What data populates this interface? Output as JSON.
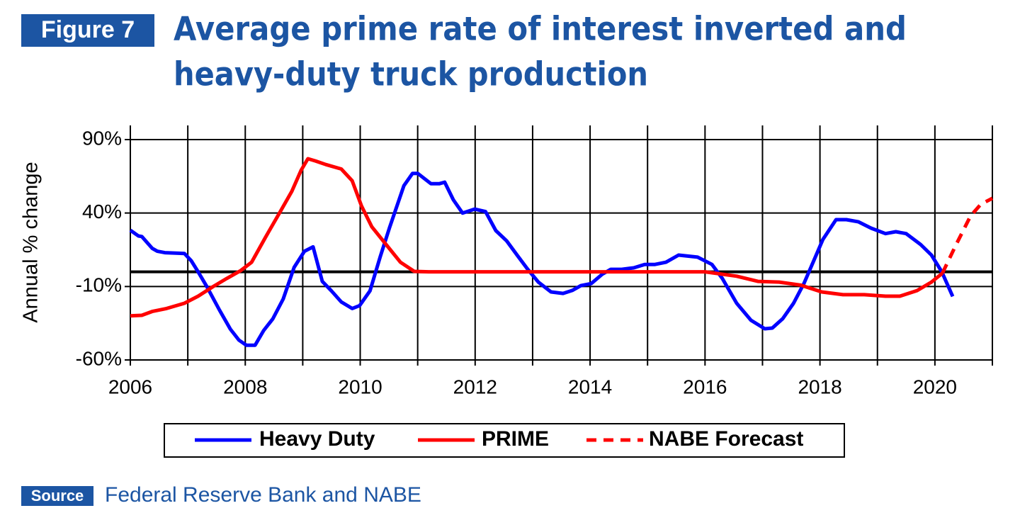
{
  "figure_label": "Figure 7",
  "source_label": "Source",
  "source": "Federal Reserve Bank and NABE",
  "chart_data": {
    "type": "line",
    "title": [
      "Average prime rate of interest inverted and",
      "heavy-duty truck production"
    ],
    "y_label": "Annual % change",
    "xlim": [
      2006,
      2021
    ],
    "xticks": [
      2006,
      2008,
      2010,
      2012,
      2014,
      2016,
      2018,
      2020
    ],
    "xgrid": [
      2007,
      2009,
      2011,
      2013,
      2015,
      2017,
      2019,
      2021
    ],
    "ylim": [
      -60,
      90
    ],
    "yticks": [
      {
        "value": -60,
        "label": "-60%"
      },
      {
        "value": -10,
        "label": "-10%"
      },
      {
        "value": 40,
        "label": "40%"
      },
      {
        "value": 90,
        "label": "90%"
      }
    ],
    "grid": true,
    "hline": 0,
    "legend": "bottom",
    "series": [
      {
        "name": "Heavy Duty",
        "color": "#0000ff",
        "style": "solid",
        "x": [
          2006.0,
          2006.14,
          2006.2,
          2006.38,
          2006.47,
          2006.6,
          2006.94,
          2007.06,
          2007.18,
          2007.33,
          2007.55,
          2007.74,
          2007.89,
          2008.02,
          2008.17,
          2008.32,
          2008.48,
          2008.66,
          2008.85,
          2009.03,
          2009.18,
          2009.34,
          2009.5,
          2009.67,
          2009.86,
          2009.99,
          2010.17,
          2010.35,
          2010.51,
          2010.76,
          2010.91,
          2011.0,
          2011.23,
          2011.38,
          2011.47,
          2011.62,
          2011.78,
          2011.99,
          2012.18,
          2012.36,
          2012.55,
          2012.73,
          2012.91,
          2013.1,
          2013.32,
          2013.53,
          2013.69,
          2013.84,
          2014.02,
          2014.21,
          2014.36,
          2014.55,
          2014.76,
          2014.95,
          2015.13,
          2015.32,
          2015.54,
          2015.87,
          2016.12,
          2016.3,
          2016.55,
          2016.8,
          2017.04,
          2017.17,
          2017.35,
          2017.54,
          2017.72,
          2017.88,
          2018.05,
          2018.28,
          2018.46,
          2018.67,
          2018.89,
          2019.14,
          2019.32,
          2019.5,
          2019.75,
          2019.94,
          2020.12,
          2020.31
        ],
        "values": [
          28.3,
          24.4,
          24,
          16,
          14,
          13,
          12.5,
          7.5,
          0,
          -10,
          -26,
          -39,
          -46.5,
          -50,
          -50,
          -40,
          -32,
          -18.5,
          3,
          14,
          17,
          -6.5,
          -13,
          -20.5,
          -25,
          -23,
          -13,
          10.4,
          30,
          58.6,
          67,
          67,
          60,
          60,
          61,
          49,
          40,
          42.7,
          41,
          28,
          21,
          11.4,
          2,
          -7,
          -13.7,
          -14.7,
          -12.7,
          -9.4,
          -8,
          -1.7,
          1.7,
          1.7,
          2.7,
          5,
          5,
          6.5,
          11.4,
          10,
          5,
          -4.5,
          -21.4,
          -33,
          -38.8,
          -38.3,
          -32,
          -21.4,
          -8,
          6.5,
          22,
          35.5,
          35.5,
          34,
          29.7,
          26,
          27.3,
          26,
          18.6,
          11.4,
          0,
          -16.8
        ]
      },
      {
        "name": "PRIME",
        "color": "#ff0000",
        "style": "solid",
        "x": [
          2006.0,
          2006.2,
          2006.38,
          2006.63,
          2006.94,
          2007.18,
          2007.43,
          2007.68,
          2007.92,
          2008.11,
          2008.35,
          2008.6,
          2008.81,
          2008.97,
          2009.09,
          2009.22,
          2009.4,
          2009.67,
          2009.86,
          2010.02,
          2010.2,
          2010.45,
          2010.7,
          2010.94,
          2011.19,
          2016.0,
          2016.55,
          2016.92,
          2017.29,
          2017.66,
          2018.03,
          2018.4,
          2018.77,
          2019.14,
          2019.39,
          2019.69,
          2019.94,
          2020.13
        ],
        "values": [
          -30,
          -29.6,
          -27,
          -25,
          -21.4,
          -16.6,
          -10.3,
          -4.5,
          0.8,
          6.5,
          23.4,
          40.3,
          54.8,
          69,
          77,
          75.5,
          73,
          70,
          62,
          45,
          30.7,
          18.6,
          6.5,
          0.3,
          0,
          0,
          -3,
          -6.5,
          -7,
          -9,
          -13.7,
          -15.6,
          -15.6,
          -16.6,
          -16.6,
          -12.8,
          -7,
          -1
        ]
      },
      {
        "name": "NABE Forecast",
        "color": "#ff0000",
        "style": "dashed",
        "x": [
          2020.13,
          2020.37,
          2020.62,
          2020.8,
          2021.0
        ],
        "values": [
          -1,
          18.6,
          38,
          46,
          50
        ]
      }
    ]
  }
}
